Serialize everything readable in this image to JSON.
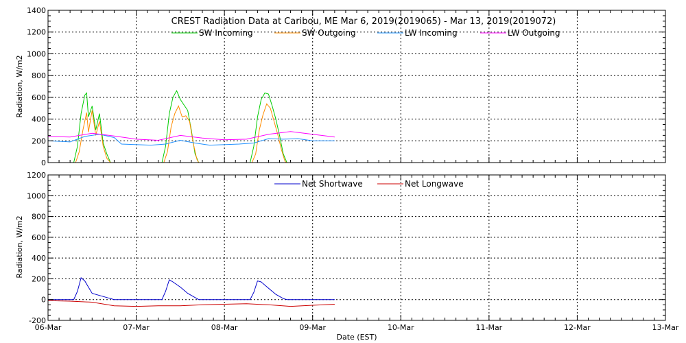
{
  "chart_data": [
    {
      "type": "line",
      "title": "CREST Radiation Data at Caribou, ME   Mar  6, 2019(2019065) - Mar 13, 2019(2019072)",
      "ylabel": "Radiation, W/m2",
      "xlabel": "",
      "xlim": [
        "2019-03-06",
        "2019-03-13"
      ],
      "ylim": [
        0,
        1400
      ],
      "yticks": [
        0,
        200,
        400,
        600,
        800,
        1000,
        1200,
        1400
      ],
      "grid": true,
      "legend": "top-center",
      "series": [
        {
          "name": "SW Incoming",
          "color": "#00cc00",
          "points": [
            [
              "2019-03-06 00:00",
              0
            ],
            [
              "2019-03-06 07:00",
              0
            ],
            [
              "2019-03-06 08:00",
              150
            ],
            [
              "2019-03-06 09:00",
              450
            ],
            [
              "2019-03-06 10:00",
              620
            ],
            [
              "2019-03-06 10:30",
              640
            ],
            [
              "2019-03-06 11:00",
              420
            ],
            [
              "2019-03-06 12:00",
              520
            ],
            [
              "2019-03-06 13:00",
              300
            ],
            [
              "2019-03-06 14:00",
              450
            ],
            [
              "2019-03-06 15:00",
              180
            ],
            [
              "2019-03-06 16:00",
              80
            ],
            [
              "2019-03-06 17:00",
              0
            ],
            [
              "2019-03-07 07:00",
              0
            ],
            [
              "2019-03-07 08:00",
              150
            ],
            [
              "2019-03-07 09:00",
              450
            ],
            [
              "2019-03-07 10:00",
              600
            ],
            [
              "2019-03-07 11:00",
              660
            ],
            [
              "2019-03-07 12:00",
              580
            ],
            [
              "2019-03-07 13:00",
              530
            ],
            [
              "2019-03-07 14:00",
              480
            ],
            [
              "2019-03-07 15:00",
              300
            ],
            [
              "2019-03-07 16:00",
              80
            ],
            [
              "2019-03-07 17:00",
              0
            ],
            [
              "2019-03-08 07:00",
              0
            ],
            [
              "2019-03-08 08:00",
              150
            ],
            [
              "2019-03-08 09:00",
              420
            ],
            [
              "2019-03-08 10:00",
              580
            ],
            [
              "2019-03-08 11:00",
              640
            ],
            [
              "2019-03-08 12:00",
              630
            ],
            [
              "2019-03-08 13:00",
              520
            ],
            [
              "2019-03-08 14:00",
              400
            ],
            [
              "2019-03-08 15:00",
              250
            ],
            [
              "2019-03-08 16:00",
              80
            ],
            [
              "2019-03-08 17:00",
              0
            ],
            [
              "2019-03-09 00:00",
              0
            ]
          ]
        },
        {
          "name": "SW Outgoing",
          "color": "#ff8c00",
          "points": [
            [
              "2019-03-06 00:00",
              0
            ],
            [
              "2019-03-06 07:30",
              0
            ],
            [
              "2019-03-06 08:30",
              100
            ],
            [
              "2019-03-06 09:30",
              300
            ],
            [
              "2019-03-06 10:30",
              460
            ],
            [
              "2019-03-06 11:00",
              280
            ],
            [
              "2019-03-06 12:00",
              480
            ],
            [
              "2019-03-06 13:00",
              250
            ],
            [
              "2019-03-06 14:00",
              380
            ],
            [
              "2019-03-06 15:00",
              150
            ],
            [
              "2019-03-06 16:00",
              40
            ],
            [
              "2019-03-06 17:00",
              0
            ],
            [
              "2019-03-07 07:30",
              0
            ],
            [
              "2019-03-07 08:30",
              100
            ],
            [
              "2019-03-07 09:30",
              330
            ],
            [
              "2019-03-07 10:30",
              450
            ],
            [
              "2019-03-07 11:30",
              520
            ],
            [
              "2019-03-07 12:30",
              420
            ],
            [
              "2019-03-07 13:30",
              430
            ],
            [
              "2019-03-07 14:30",
              380
            ],
            [
              "2019-03-07 15:30",
              180
            ],
            [
              "2019-03-07 16:30",
              30
            ],
            [
              "2019-03-07 17:00",
              0
            ],
            [
              "2019-03-08 07:30",
              0
            ],
            [
              "2019-03-08 08:30",
              80
            ],
            [
              "2019-03-08 09:30",
              300
            ],
            [
              "2019-03-08 10:30",
              440
            ],
            [
              "2019-03-08 11:30",
              540
            ],
            [
              "2019-03-08 12:30",
              500
            ],
            [
              "2019-03-08 13:30",
              380
            ],
            [
              "2019-03-08 14:30",
              260
            ],
            [
              "2019-03-08 15:30",
              120
            ],
            [
              "2019-03-08 16:30",
              10
            ],
            [
              "2019-03-08 17:00",
              0
            ],
            [
              "2019-03-09 00:00",
              0
            ]
          ]
        },
        {
          "name": "LW Incoming",
          "color": "#1e90ff",
          "points": [
            [
              "2019-03-06 00:00",
              200
            ],
            [
              "2019-03-06 06:00",
              190
            ],
            [
              "2019-03-06 10:00",
              240
            ],
            [
              "2019-03-06 14:00",
              260
            ],
            [
              "2019-03-06 18:00",
              230
            ],
            [
              "2019-03-06 20:00",
              170
            ],
            [
              "2019-03-07 04:00",
              160
            ],
            [
              "2019-03-07 08:00",
              170
            ],
            [
              "2019-03-07 12:00",
              205
            ],
            [
              "2019-03-07 16:00",
              180
            ],
            [
              "2019-03-07 20:00",
              160
            ],
            [
              "2019-03-08 04:00",
              170
            ],
            [
              "2019-03-08 08:00",
              180
            ],
            [
              "2019-03-08 12:00",
              220
            ],
            [
              "2019-03-08 16:00",
              215
            ],
            [
              "2019-03-08 20:00",
              220
            ],
            [
              "2019-03-09 00:00",
              200
            ],
            [
              "2019-03-09 06:00",
              200
            ]
          ]
        },
        {
          "name": "LW Outgoing",
          "color": "#ff00ff",
          "points": [
            [
              "2019-03-06 00:00",
              240
            ],
            [
              "2019-03-06 06:00",
              235
            ],
            [
              "2019-03-06 12:00",
              270
            ],
            [
              "2019-03-06 18:00",
              245
            ],
            [
              "2019-03-07 00:00",
              215
            ],
            [
              "2019-03-07 06:00",
              205
            ],
            [
              "2019-03-07 12:00",
              250
            ],
            [
              "2019-03-07 18:00",
              225
            ],
            [
              "2019-03-08 00:00",
              210
            ],
            [
              "2019-03-08 06:00",
              215
            ],
            [
              "2019-03-08 12:00",
              260
            ],
            [
              "2019-03-08 18:00",
              285
            ],
            [
              "2019-03-09 00:00",
              260
            ],
            [
              "2019-03-09 06:00",
              235
            ]
          ]
        }
      ]
    },
    {
      "type": "line",
      "title": "",
      "ylabel": "Radiation, W/m2",
      "xlabel": "Date (EST)",
      "xlim": [
        "2019-03-06",
        "2019-03-13"
      ],
      "ylim": [
        -200,
        1200
      ],
      "yticks": [
        -200,
        0,
        200,
        400,
        600,
        800,
        1000,
        1200
      ],
      "xticks": [
        "06-Mar",
        "07-Mar",
        "08-Mar",
        "09-Mar",
        "10-Mar",
        "11-Mar",
        "12-Mar",
        "13-Mar"
      ],
      "grid": true,
      "legend": "top-center",
      "series": [
        {
          "name": "Net Shortwave",
          "color": "#0000cc",
          "points": [
            [
              "2019-03-06 00:00",
              0
            ],
            [
              "2019-03-06 07:00",
              0
            ],
            [
              "2019-03-06 08:00",
              80
            ],
            [
              "2019-03-06 09:00",
              210
            ],
            [
              "2019-03-06 10:00",
              180
            ],
            [
              "2019-03-06 11:00",
              120
            ],
            [
              "2019-03-06 12:00",
              60
            ],
            [
              "2019-03-06 14:00",
              40
            ],
            [
              "2019-03-06 16:00",
              20
            ],
            [
              "2019-03-06 18:00",
              0
            ],
            [
              "2019-03-07 07:00",
              0
            ],
            [
              "2019-03-07 08:00",
              80
            ],
            [
              "2019-03-07 09:00",
              190
            ],
            [
              "2019-03-07 10:00",
              170
            ],
            [
              "2019-03-07 12:00",
              120
            ],
            [
              "2019-03-07 14:00",
              60
            ],
            [
              "2019-03-07 16:00",
              20
            ],
            [
              "2019-03-07 17:00",
              0
            ],
            [
              "2019-03-08 07:00",
              0
            ],
            [
              "2019-03-08 08:00",
              70
            ],
            [
              "2019-03-08 09:00",
              180
            ],
            [
              "2019-03-08 10:00",
              170
            ],
            [
              "2019-03-08 12:00",
              110
            ],
            [
              "2019-03-08 14:00",
              50
            ],
            [
              "2019-03-08 16:00",
              10
            ],
            [
              "2019-03-08 17:00",
              0
            ],
            [
              "2019-03-09 06:00",
              0
            ]
          ]
        },
        {
          "name": "Net Longwave",
          "color": "#cc0000",
          "points": [
            [
              "2019-03-06 00:00",
              -10
            ],
            [
              "2019-03-06 06:00",
              -15
            ],
            [
              "2019-03-06 12:00",
              -25
            ],
            [
              "2019-03-06 18:00",
              -60
            ],
            [
              "2019-03-07 00:00",
              -65
            ],
            [
              "2019-03-07 06:00",
              -60
            ],
            [
              "2019-03-07 12:00",
              -60
            ],
            [
              "2019-03-07 18:00",
              -50
            ],
            [
              "2019-03-08 00:00",
              -45
            ],
            [
              "2019-03-08 06:00",
              -40
            ],
            [
              "2019-03-08 12:00",
              -50
            ],
            [
              "2019-03-08 18:00",
              -65
            ],
            [
              "2019-03-09 00:00",
              -55
            ],
            [
              "2019-03-09 06:00",
              -45
            ]
          ]
        }
      ]
    }
  ]
}
